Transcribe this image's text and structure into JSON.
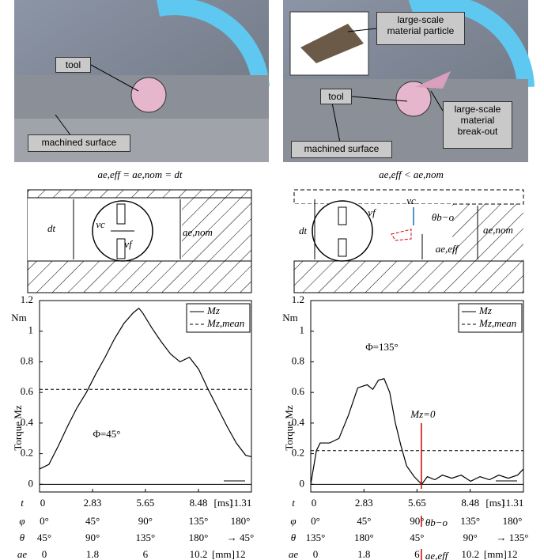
{
  "photos": [
    {
      "labels": [
        "tool",
        "machined surface"
      ]
    },
    {
      "labels": [
        "large-scale material particle",
        "tool",
        "large-scale material break-out",
        "machined surface"
      ]
    }
  ],
  "schematics": [
    {
      "formula": "ae,eff = ae,nom = dt",
      "labels": [
        "dt",
        "vc",
        "vf",
        "ae,nom"
      ]
    },
    {
      "formula": "ae,eff < ae,nom",
      "labels": [
        "vc",
        "θb−o",
        "vf",
        "dt",
        "ae,nom",
        "ae,eff"
      ]
    }
  ],
  "chart_data": [
    {
      "type": "line",
      "y_unit": "Nm",
      "ylabel": "Torque Mz",
      "annotation": "Φ=45°",
      "x": [
        0,
        0.5,
        1,
        1.5,
        2,
        2.5,
        3,
        3.5,
        4,
        4.5,
        5,
        5.3,
        5.5,
        6,
        6.5,
        7,
        7.5,
        8,
        8.5,
        9,
        9.5,
        10,
        10.5,
        11,
        11.31
      ],
      "series": [
        {
          "name": "Mz",
          "color": "#000000",
          "values": [
            0.1,
            0.13,
            0.25,
            0.38,
            0.5,
            0.6,
            0.72,
            0.83,
            0.95,
            1.05,
            1.12,
            1.15,
            1.12,
            1.02,
            0.93,
            0.85,
            0.8,
            0.83,
            0.75,
            0.62,
            0.5,
            0.38,
            0.27,
            0.19,
            0.18
          ]
        }
      ],
      "mean": {
        "name": "Mz,mean",
        "value": 0.62
      },
      "xlim": [
        0,
        11.31
      ],
      "xticks": [
        0,
        2.83,
        5.65,
        8.48,
        11.31
      ],
      "x_symbol": "t",
      "x_unit": "[ms]",
      "ylim": [
        -0.05,
        1.2
      ],
      "yticks": [
        0,
        0.2,
        0.4,
        0.6,
        0.8,
        1,
        1.2
      ],
      "axis_rows": [
        {
          "symbol": "φ",
          "labels": [
            "0°",
            "45°",
            "90°",
            "135°",
            "180°"
          ]
        },
        {
          "symbol": "θ",
          "labels": [
            "45°",
            "90°",
            "135°",
            "180°",
            "→ 45°"
          ]
        },
        {
          "symbol": "ae",
          "labels": [
            0,
            1.8,
            6,
            10.2,
            12
          ],
          "unit": "[mm]"
        }
      ]
    },
    {
      "type": "line",
      "y_unit": "Nm",
      "ylabel": "Torque Mz",
      "annotation": "Φ=135°",
      "zero_label": "Mz=0",
      "x": [
        0,
        0.3,
        0.5,
        1,
        1.5,
        2,
        2.5,
        3,
        3.3,
        3.6,
        3.9,
        4.2,
        4.5,
        4.8,
        5.1,
        5.5,
        5.9,
        6.2,
        6.6,
        7,
        7.5,
        8,
        8.5,
        9,
        9.5,
        10,
        10.5,
        11,
        11.31
      ],
      "series": [
        {
          "name": "Mz",
          "color": "#000000",
          "values": [
            0,
            0.22,
            0.27,
            0.27,
            0.3,
            0.45,
            0.63,
            0.65,
            0.62,
            0.68,
            0.69,
            0.6,
            0.4,
            0.25,
            0.12,
            0.05,
            0,
            0.05,
            0.03,
            0.06,
            0.04,
            0.06,
            0.02,
            0.05,
            0.03,
            0.06,
            0.04,
            0.06,
            0.1
          ]
        }
      ],
      "mean": {
        "name": "Mz,mean",
        "value": 0.22
      },
      "xlim": [
        0,
        11.31
      ],
      "xticks": [
        0,
        2.83,
        5.65,
        8.48,
        11.31
      ],
      "x_symbol": "t",
      "x_unit": "[ms]",
      "ylim": [
        -0.05,
        1.2
      ],
      "yticks": [
        0,
        0.2,
        0.4,
        0.6,
        0.8,
        1,
        1.2
      ],
      "axis_rows": [
        {
          "symbol": "φ",
          "labels": [
            "0°",
            "45°",
            "90°",
            "135°",
            "180°"
          ],
          "marker": "θb−o"
        },
        {
          "symbol": "θ",
          "labels": [
            "135°",
            "180°",
            "45°",
            "90°",
            "→ 135°"
          ]
        },
        {
          "symbol": "ae",
          "labels": [
            0,
            1.8,
            6,
            10.2,
            12
          ],
          "unit": "[mm]",
          "marker": "ae,eff"
        }
      ]
    }
  ]
}
